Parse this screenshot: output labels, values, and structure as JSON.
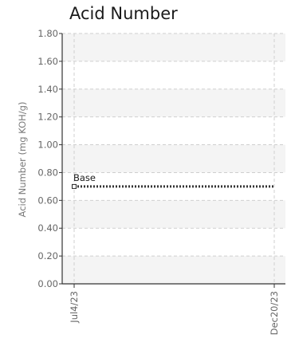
{
  "chart_data": {
    "type": "line",
    "title": "Acid Number",
    "xlabel": "",
    "ylabel": "Acid Number (mg KOH/g)",
    "x_ticks": [
      "Jul4/23",
      "Dec20/23"
    ],
    "y_ticks": [
      "0.00",
      "0.20",
      "0.40",
      "0.60",
      "0.80",
      "1.00",
      "1.20",
      "1.40",
      "1.60",
      "1.80"
    ],
    "ylim": [
      0,
      1.8
    ],
    "grid": true,
    "grid_style": "dashed",
    "band_fill": "#f4f4f4",
    "series": [
      {
        "name": "Base",
        "color": "#333333",
        "style": "dotted",
        "marker": "open-square-at-start",
        "points": [
          {
            "x": "Jul4/23",
            "y": 0.7
          },
          {
            "x": "Dec20/23",
            "y": 0.7
          }
        ]
      }
    ],
    "annotations": [
      {
        "text": "Base",
        "x": "Jul4/23",
        "y": 0.7
      }
    ]
  }
}
